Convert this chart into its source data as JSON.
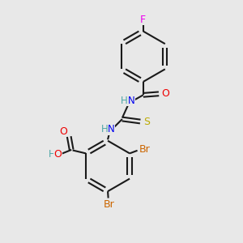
{
  "background_color": "#e8e8e8",
  "bond_color": "#1a1a1a",
  "atom_colors": {
    "C": "#1a1a1a",
    "H": "#4da6a6",
    "N": "#0000ee",
    "O": "#ee0000",
    "S": "#bbaa00",
    "F": "#ee00ee",
    "Br": "#cc6600"
  },
  "figsize": [
    3.0,
    3.0
  ],
  "dpi": 100
}
